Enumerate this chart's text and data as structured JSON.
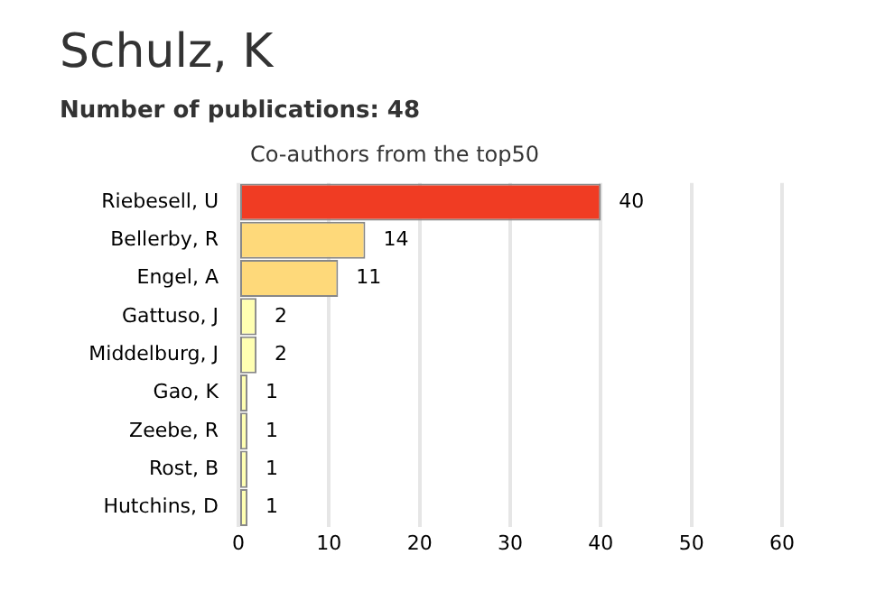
{
  "chart_data": {
    "type": "bar",
    "orientation": "horizontal",
    "title": "Schulz, K",
    "subtitle": "Number of publications: 48",
    "annotations": [
      "Co-authors from the top50"
    ],
    "categories": [
      "Riebesell, U",
      "Bellerby, R",
      "Engel, A",
      "Gattuso, J",
      "Middelburg, J",
      "Gao, K",
      "Zeebe, R",
      "Rost, B",
      "Hutchins, D"
    ],
    "values": [
      40,
      14,
      11,
      2,
      2,
      1,
      1,
      1,
      1
    ],
    "colors": [
      "#f03c23",
      "#fed97a",
      "#fed97a",
      "#ffffb2",
      "#ffffb2",
      "#ffffb2",
      "#ffffb2",
      "#ffffb2",
      "#ffffb2"
    ],
    "xlim": [
      0,
      60
    ],
    "xticks": [
      0,
      10,
      20,
      30,
      40,
      50,
      60
    ],
    "grid": "x",
    "legend": false,
    "data_labels": true
  }
}
